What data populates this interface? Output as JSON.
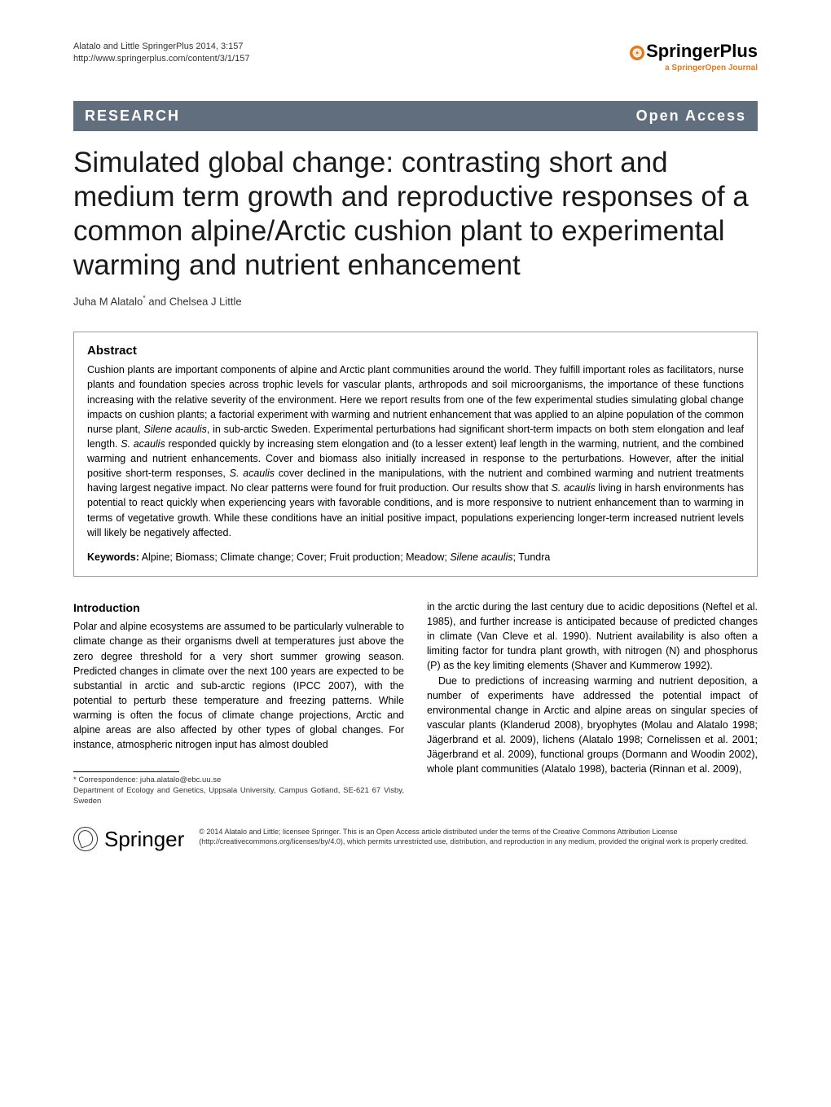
{
  "header": {
    "citation_line1": "Alatalo and Little SpringerPlus 2014, 3:157",
    "citation_line2": "http://www.springerplus.com/content/3/1/157",
    "journal_name_main": "Springer",
    "journal_name_suffix": "Plus",
    "journal_tagline": "a SpringerOpen Journal"
  },
  "banner": {
    "left": "RESEARCH",
    "right": "Open Access"
  },
  "title": "Simulated global change: contrasting short and medium term growth and reproductive responses of a common alpine/Arctic cushion plant to experimental warming and nutrient enhancement",
  "authors": "Juha M Alatalo* and Chelsea J Little",
  "abstract": {
    "heading": "Abstract",
    "text": "Cushion plants are important components of alpine and Arctic plant communities around the world. They fulfill important roles as facilitators, nurse plants and foundation species across trophic levels for vascular plants, arthropods and soil microorganisms, the importance of these functions increasing with the relative severity of the environment. Here we report results from one of the few experimental studies simulating global change impacts on cushion plants; a factorial experiment with warming and nutrient enhancement that was applied to an alpine population of the common nurse plant, Silene acaulis, in sub-arctic Sweden. Experimental perturbations had significant short-term impacts on both stem elongation and leaf length. S. acaulis responded quickly by increasing stem elongation and (to a lesser extent) leaf length in the warming, nutrient, and the combined warming and nutrient enhancements. Cover and biomass also initially increased in response to the perturbations. However, after the initial positive short-term responses, S. acaulis cover declined in the manipulations, with the nutrient and combined warming and nutrient treatments having largest negative impact. No clear patterns were found for fruit production. Our results show that S. acaulis living in harsh environments has potential to react quickly when experiencing years with favorable conditions, and is more responsive to nutrient enhancement than to warming in terms of vegetative growth. While these conditions have an initial positive impact, populations experiencing longer-term increased nutrient levels will likely be negatively affected.",
    "keywords_label": "Keywords:",
    "keywords": " Alpine; Biomass; Climate change; Cover; Fruit production; Meadow; Silene acaulis; Tundra"
  },
  "body": {
    "intro_heading": "Introduction",
    "col1_p1": "Polar and alpine ecosystems are assumed to be particularly vulnerable to climate change as their organisms dwell at temperatures just above the zero degree threshold for a very short summer growing season. Predicted changes in climate over the next 100 years are expected to be substantial in arctic and sub-arctic regions (IPCC 2007), with the potential to perturb these temperature and freezing patterns. While warming is often the focus of climate change projections, Arctic and alpine areas are also affected by other types of global changes. For instance, atmospheric nitrogen input has almost doubled",
    "col2_p1": "in the arctic during the last century due to acidic depositions (Neftel et al. 1985), and further increase is anticipated because of predicted changes in climate (Van Cleve et al. 1990). Nutrient availability is also often a limiting factor for tundra plant growth, with nitrogen (N) and phosphorus (P) as the key limiting elements (Shaver and Kummerow 1992).",
    "col2_p2": "Due to predictions of increasing warming and nutrient deposition, a number of experiments have addressed the potential impact of environmental change in Arctic and alpine areas on singular species of vascular plants (Klanderud 2008), bryophytes (Molau and Alatalo 1998; Jägerbrand et al. 2009), lichens (Alatalo 1998; Cornelissen et al. 2001; Jägerbrand et al. 2009), functional groups (Dormann and Woodin 2002), whole plant communities (Alatalo 1998), bacteria (Rinnan et al. 2009),"
  },
  "footnote": {
    "correspondence": "* Correspondence: juha.alatalo@ebc.uu.se",
    "affiliation": "Department of Ecology and Genetics, Uppsala University, Campus Gotland, SE-621 67 Visby, Sweden"
  },
  "footer": {
    "logo_text": "Springer",
    "license": "© 2014 Alatalo and Little; licensee Springer. This is an Open Access article distributed under the terms of the Creative Commons Attribution License (http://creativecommons.org/licenses/by/4.0), which permits unrestricted use, distribution, and reproduction in any medium, provided the original work is properly credited."
  }
}
